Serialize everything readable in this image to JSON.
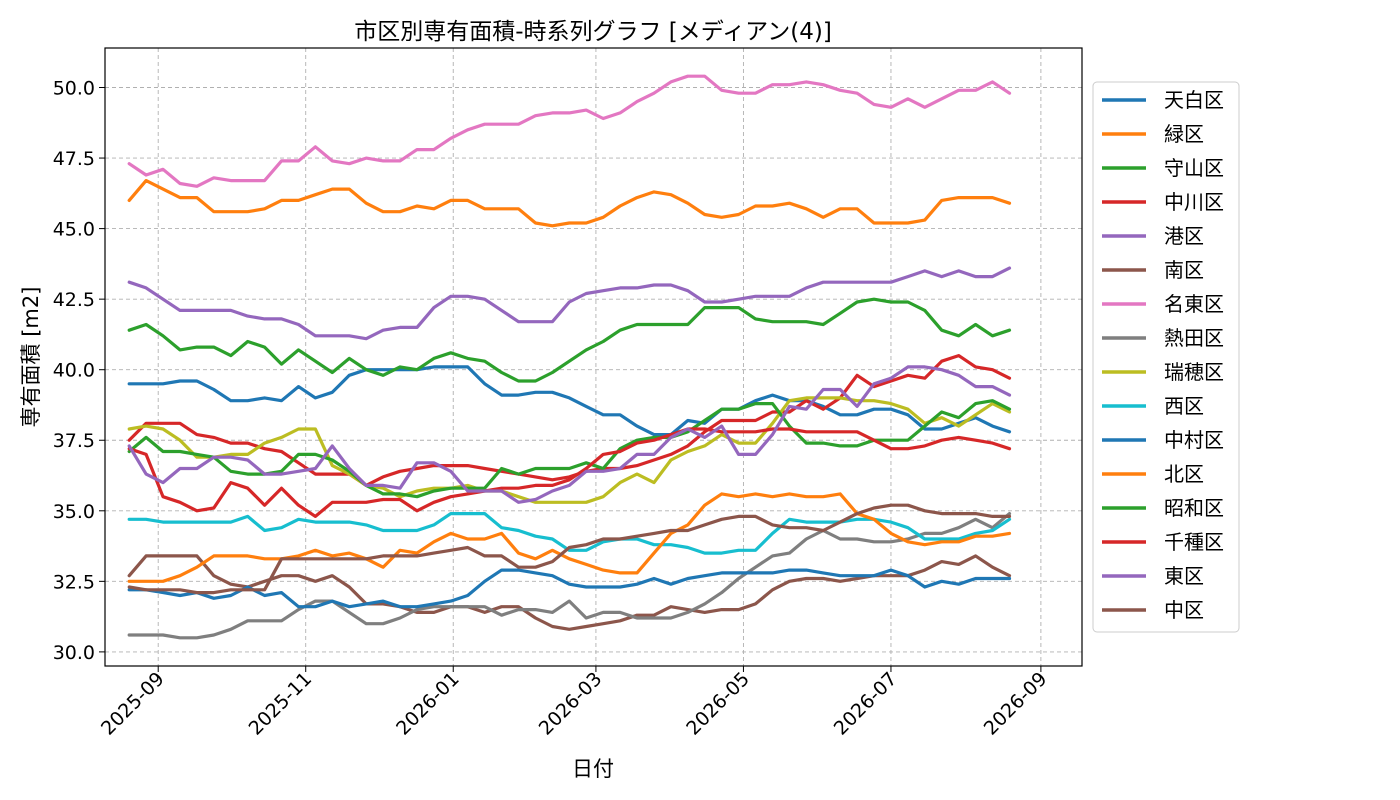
{
  "chart_data": {
    "type": "line",
    "title": "市区別専有面積-時系列グラフ [メディアン(4)]",
    "xlabel": "日付",
    "ylabel": "専有面積 [m2]",
    "ylim": [
      29.5,
      51.4
    ],
    "xlim": [
      "2025-08-10",
      "2026-09-18"
    ],
    "grid": true,
    "legend_position": "outside-right",
    "x_ticks": [
      "2025-09",
      "2025-11",
      "2026-01",
      "2026-03",
      "2026-05",
      "2026-07",
      "2026-09"
    ],
    "y_ticks": [
      "30.0",
      "32.5",
      "35.0",
      "37.5",
      "40.0",
      "42.5",
      "45.0",
      "47.5",
      "50.0"
    ],
    "x": [
      "2025-08-20",
      "2025-08-27",
      "2025-09-03",
      "2025-09-10",
      "2025-09-17",
      "2025-09-24",
      "2025-10-01",
      "2025-10-08",
      "2025-10-15",
      "2025-10-22",
      "2025-10-29",
      "2025-11-05",
      "2025-11-12",
      "2025-11-19",
      "2025-11-26",
      "2025-12-03",
      "2025-12-10",
      "2025-12-17",
      "2025-12-24",
      "2025-12-31",
      "2026-01-07",
      "2026-01-14",
      "2026-01-21",
      "2026-01-28",
      "2026-02-04",
      "2026-02-11",
      "2026-02-18",
      "2026-02-25",
      "2026-03-04",
      "2026-03-11",
      "2026-03-18",
      "2026-03-25",
      "2026-04-01",
      "2026-04-08",
      "2026-04-15",
      "2026-04-22",
      "2026-04-29",
      "2026-05-06",
      "2026-05-13",
      "2026-05-20",
      "2026-05-27",
      "2026-06-03",
      "2026-06-10",
      "2026-06-17",
      "2026-06-24",
      "2026-07-01",
      "2026-07-08",
      "2026-07-15",
      "2026-07-22",
      "2026-07-29",
      "2026-08-05",
      "2026-08-12",
      "2026-08-19"
    ],
    "series": [
      {
        "name": "天白区",
        "color": "#1f77b4",
        "values": [
          39.5,
          39.5,
          39.5,
          39.6,
          39.6,
          39.3,
          38.9,
          38.9,
          39.0,
          38.9,
          39.4,
          39.0,
          39.2,
          39.8,
          40.0,
          40.0,
          40.0,
          40.0,
          40.1,
          40.1,
          40.1,
          39.5,
          39.1,
          39.1,
          39.2,
          39.2,
          39.0,
          38.7,
          38.4,
          38.4,
          38.0,
          37.7,
          37.7,
          38.2,
          38.1,
          38.6,
          38.6,
          38.9,
          39.1,
          38.9,
          38.9,
          38.7,
          38.4,
          38.4,
          38.6,
          38.6,
          38.4,
          37.9,
          37.9,
          38.1,
          38.3,
          38.0,
          37.8
        ]
      },
      {
        "name": "緑区",
        "color": "#ff7f0e",
        "values": [
          46.0,
          46.7,
          46.4,
          46.1,
          46.1,
          45.6,
          45.6,
          45.6,
          45.7,
          46.0,
          46.0,
          46.2,
          46.4,
          46.4,
          45.9,
          45.6,
          45.6,
          45.8,
          45.7,
          46.0,
          46.0,
          45.7,
          45.7,
          45.7,
          45.2,
          45.1,
          45.2,
          45.2,
          45.4,
          45.8,
          46.1,
          46.3,
          46.2,
          45.9,
          45.5,
          45.4,
          45.5,
          45.8,
          45.8,
          45.9,
          45.7,
          45.4,
          45.7,
          45.7,
          45.2,
          45.2,
          45.2,
          45.3,
          46.0,
          46.1,
          46.1,
          46.1,
          45.9
        ]
      },
      {
        "name": "守山区",
        "color": "#2ca02c",
        "values": [
          41.4,
          41.6,
          41.2,
          40.7,
          40.8,
          40.8,
          40.5,
          41.0,
          40.8,
          40.2,
          40.7,
          40.3,
          39.9,
          40.4,
          40.0,
          39.8,
          40.1,
          40.0,
          40.4,
          40.6,
          40.4,
          40.3,
          39.9,
          39.6,
          39.6,
          39.9,
          40.3,
          40.7,
          41.0,
          41.4,
          41.6,
          41.6,
          41.6,
          41.6,
          42.2,
          42.2,
          42.2,
          41.8,
          41.7,
          41.7,
          41.7,
          41.6,
          42.0,
          42.4,
          42.5,
          42.4,
          42.4,
          42.1,
          41.4,
          41.2,
          41.6,
          41.2,
          41.4
        ]
      },
      {
        "name": "中川区",
        "color": "#d62728",
        "values": [
          37.5,
          38.1,
          38.1,
          38.1,
          37.7,
          37.6,
          37.4,
          37.4,
          37.2,
          37.1,
          36.7,
          36.3,
          36.3,
          36.3,
          35.9,
          36.2,
          36.4,
          36.5,
          36.6,
          36.6,
          36.6,
          36.5,
          36.4,
          36.3,
          36.2,
          36.1,
          36.2,
          36.4,
          36.5,
          36.5,
          36.6,
          36.8,
          37.0,
          37.3,
          37.8,
          38.2,
          38.2,
          38.2,
          38.5,
          38.5,
          38.9,
          38.6,
          39.0,
          39.8,
          39.4,
          39.6,
          39.8,
          39.7,
          40.3,
          40.5,
          40.1,
          40.0,
          39.7
        ]
      },
      {
        "name": "港区",
        "color": "#9467bd",
        "values": [
          43.1,
          42.9,
          42.5,
          42.1,
          42.1,
          42.1,
          42.1,
          41.9,
          41.8,
          41.8,
          41.6,
          41.2,
          41.2,
          41.2,
          41.1,
          41.4,
          41.5,
          41.5,
          42.2,
          42.6,
          42.6,
          42.5,
          42.1,
          41.7,
          41.7,
          41.7,
          42.4,
          42.7,
          42.8,
          42.9,
          42.9,
          43.0,
          43.0,
          42.8,
          42.4,
          42.4,
          42.5,
          42.6,
          42.6,
          42.6,
          42.9,
          43.1,
          43.1,
          43.1,
          43.1,
          43.1,
          43.3,
          43.5,
          43.3,
          43.5,
          43.3,
          43.3,
          43.6
        ]
      },
      {
        "name": "南区",
        "color": "#8c564b",
        "values": [
          32.7,
          33.4,
          33.4,
          33.4,
          33.4,
          32.7,
          32.4,
          32.3,
          32.5,
          32.7,
          32.7,
          32.5,
          32.7,
          32.3,
          31.7,
          31.7,
          31.6,
          31.4,
          31.4,
          31.6,
          31.6,
          31.4,
          31.6,
          31.6,
          31.2,
          30.9,
          30.8,
          30.9,
          31.0,
          31.1,
          31.3,
          31.3,
          31.6,
          31.5,
          31.4,
          31.5,
          31.5,
          31.7,
          32.2,
          32.5,
          32.6,
          32.6,
          32.5,
          32.6,
          32.7,
          32.7,
          32.7,
          32.9,
          33.2,
          33.1,
          33.4,
          33.0,
          32.7
        ]
      },
      {
        "name": "名東区",
        "color": "#e377c2",
        "values": [
          47.3,
          46.9,
          47.1,
          46.6,
          46.5,
          46.8,
          46.7,
          46.7,
          46.7,
          47.4,
          47.4,
          47.9,
          47.4,
          47.3,
          47.5,
          47.4,
          47.4,
          47.8,
          47.8,
          48.2,
          48.5,
          48.7,
          48.7,
          48.7,
          49.0,
          49.1,
          49.1,
          49.2,
          48.9,
          49.1,
          49.5,
          49.8,
          50.2,
          50.4,
          50.4,
          49.9,
          49.8,
          49.8,
          50.1,
          50.1,
          50.2,
          50.1,
          49.9,
          49.8,
          49.4,
          49.3,
          49.6,
          49.3,
          49.6,
          49.9,
          49.9,
          50.2,
          49.8
        ]
      },
      {
        "name": "熱田区",
        "color": "#7f7f7f",
        "values": [
          30.6,
          30.6,
          30.6,
          30.5,
          30.5,
          30.6,
          30.8,
          31.1,
          31.1,
          31.1,
          31.5,
          31.8,
          31.8,
          31.4,
          31.0,
          31.0,
          31.2,
          31.5,
          31.6,
          31.6,
          31.6,
          31.6,
          31.3,
          31.5,
          31.5,
          31.4,
          31.8,
          31.2,
          31.4,
          31.4,
          31.2,
          31.2,
          31.2,
          31.4,
          31.7,
          32.1,
          32.6,
          33.0,
          33.4,
          33.5,
          34.0,
          34.3,
          34.0,
          34.0,
          33.9,
          33.9,
          34.0,
          34.2,
          34.2,
          34.4,
          34.7,
          34.4,
          34.9
        ]
      },
      {
        "name": "瑞穂区",
        "color": "#bcbd22",
        "values": [
          37.9,
          38.0,
          37.9,
          37.5,
          36.9,
          36.9,
          37.0,
          37.0,
          37.4,
          37.6,
          37.9,
          37.9,
          36.6,
          36.3,
          35.9,
          35.8,
          35.5,
          35.7,
          35.8,
          35.8,
          35.9,
          35.7,
          35.7,
          35.5,
          35.3,
          35.3,
          35.3,
          35.3,
          35.5,
          36.0,
          36.3,
          36.0,
          36.8,
          37.1,
          37.3,
          37.7,
          37.4,
          37.4,
          38.1,
          38.9,
          39.0,
          39.0,
          39.0,
          38.9,
          38.9,
          38.8,
          38.6,
          38.1,
          38.3,
          38.0,
          38.4,
          38.8,
          38.5
        ]
      },
      {
        "name": "西区",
        "color": "#17becf",
        "values": [
          34.7,
          34.7,
          34.6,
          34.6,
          34.6,
          34.6,
          34.6,
          34.8,
          34.3,
          34.4,
          34.7,
          34.6,
          34.6,
          34.6,
          34.5,
          34.3,
          34.3,
          34.3,
          34.5,
          34.9,
          34.9,
          34.9,
          34.4,
          34.3,
          34.1,
          34.0,
          33.6,
          33.6,
          33.9,
          34.0,
          34.0,
          33.8,
          33.8,
          33.7,
          33.5,
          33.5,
          33.6,
          33.6,
          34.2,
          34.7,
          34.6,
          34.6,
          34.6,
          34.7,
          34.7,
          34.6,
          34.4,
          34.0,
          34.0,
          34.0,
          34.2,
          34.3,
          34.7
        ]
      },
      {
        "name": "中村区",
        "color": "#1f77b4",
        "values": [
          32.2,
          32.2,
          32.1,
          32.0,
          32.1,
          31.9,
          32.0,
          32.3,
          32.0,
          32.1,
          31.6,
          31.6,
          31.8,
          31.6,
          31.7,
          31.8,
          31.6,
          31.6,
          31.7,
          31.8,
          32.0,
          32.5,
          32.9,
          32.9,
          32.8,
          32.7,
          32.4,
          32.3,
          32.3,
          32.3,
          32.4,
          32.6,
          32.4,
          32.6,
          32.7,
          32.8,
          32.8,
          32.8,
          32.8,
          32.9,
          32.9,
          32.8,
          32.7,
          32.7,
          32.7,
          32.9,
          32.7,
          32.3,
          32.5,
          32.4,
          32.6,
          32.6,
          32.6
        ]
      },
      {
        "name": "北区",
        "color": "#ff7f0e",
        "values": [
          32.5,
          32.5,
          32.5,
          32.7,
          33.0,
          33.4,
          33.4,
          33.4,
          33.3,
          33.3,
          33.4,
          33.6,
          33.4,
          33.5,
          33.3,
          33.0,
          33.6,
          33.5,
          33.9,
          34.2,
          34.0,
          34.0,
          34.2,
          33.5,
          33.3,
          33.6,
          33.3,
          33.1,
          32.9,
          32.8,
          32.8,
          33.5,
          34.2,
          34.5,
          35.2,
          35.6,
          35.5,
          35.6,
          35.5,
          35.6,
          35.5,
          35.5,
          35.6,
          34.9,
          34.7,
          34.2,
          33.9,
          33.8,
          33.9,
          33.9,
          34.1,
          34.1,
          34.2
        ]
      },
      {
        "name": "昭和区",
        "color": "#2ca02c",
        "values": [
          37.1,
          37.6,
          37.1,
          37.1,
          37.0,
          36.9,
          36.4,
          36.3,
          36.3,
          36.4,
          37.0,
          37.0,
          36.8,
          36.4,
          35.9,
          35.6,
          35.6,
          35.5,
          35.7,
          35.8,
          35.8,
          35.8,
          36.5,
          36.3,
          36.5,
          36.5,
          36.5,
          36.7,
          36.5,
          37.2,
          37.5,
          37.6,
          37.6,
          37.8,
          38.2,
          38.6,
          38.6,
          38.8,
          38.8,
          38.0,
          37.4,
          37.4,
          37.3,
          37.3,
          37.5,
          37.5,
          37.5,
          38.0,
          38.5,
          38.3,
          38.8,
          38.9,
          38.6
        ]
      },
      {
        "name": "千種区",
        "color": "#d62728",
        "values": [
          37.2,
          37.0,
          35.5,
          35.3,
          35.0,
          35.1,
          36.0,
          35.8,
          35.2,
          35.8,
          35.2,
          34.8,
          35.3,
          35.3,
          35.3,
          35.4,
          35.4,
          35.0,
          35.3,
          35.5,
          35.6,
          35.7,
          35.8,
          35.8,
          35.9,
          35.9,
          36.1,
          36.5,
          37.0,
          37.1,
          37.4,
          37.5,
          37.7,
          37.9,
          37.9,
          37.8,
          37.8,
          37.8,
          37.9,
          37.9,
          37.8,
          37.8,
          37.8,
          37.8,
          37.5,
          37.2,
          37.2,
          37.3,
          37.5,
          37.6,
          37.5,
          37.4,
          37.2
        ]
      },
      {
        "name": "東区",
        "color": "#9467bd",
        "values": [
          37.3,
          36.3,
          36.0,
          36.5,
          36.5,
          36.9,
          36.9,
          36.8,
          36.3,
          36.3,
          36.4,
          36.5,
          37.3,
          36.5,
          35.9,
          35.9,
          35.8,
          36.7,
          36.7,
          36.4,
          35.7,
          35.7,
          35.7,
          35.3,
          35.4,
          35.7,
          35.9,
          36.4,
          36.4,
          36.5,
          37.0,
          37.0,
          37.6,
          37.9,
          37.6,
          38.0,
          37.0,
          37.0,
          37.7,
          38.7,
          38.6,
          39.3,
          39.3,
          38.7,
          39.5,
          39.7,
          40.1,
          40.1,
          40.0,
          39.8,
          39.4,
          39.4,
          39.1
        ]
      },
      {
        "name": "中区",
        "color": "#8c564b",
        "values": [
          32.3,
          32.2,
          32.2,
          32.2,
          32.1,
          32.1,
          32.2,
          32.2,
          32.2,
          33.3,
          33.3,
          33.3,
          33.3,
          33.3,
          33.3,
          33.4,
          33.4,
          33.4,
          33.5,
          33.6,
          33.7,
          33.4,
          33.4,
          33.0,
          33.0,
          33.2,
          33.7,
          33.8,
          34.0,
          34.0,
          34.1,
          34.2,
          34.3,
          34.3,
          34.5,
          34.7,
          34.8,
          34.8,
          34.5,
          34.4,
          34.4,
          34.3,
          34.6,
          34.9,
          35.1,
          35.2,
          35.2,
          35.0,
          34.9,
          34.9,
          34.9,
          34.8,
          34.8
        ]
      }
    ]
  }
}
